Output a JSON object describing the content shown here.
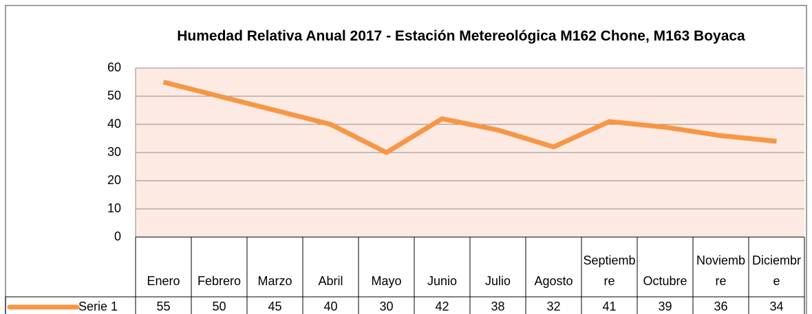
{
  "chart_data": {
    "type": "line",
    "title": "Humedad Relativa Anual 2017  - Estación Metereológica M162 Chone, M163 Boyaca",
    "categories": [
      "Enero",
      "Febrero",
      "Marzo",
      "Abril",
      "Mayo",
      "Junio",
      "Julio",
      "Agosto",
      "Septiembre",
      "Octubre",
      "Noviembre",
      "Diciembre"
    ],
    "series": [
      {
        "name": "Serie 1",
        "color": "#f79646",
        "values": [
          55,
          50,
          45,
          40,
          30,
          42,
          38,
          32,
          41,
          39,
          36,
          34
        ]
      }
    ],
    "ylim": [
      0,
      60
    ],
    "yticks": [
      0,
      10,
      20,
      30,
      40,
      50,
      60
    ],
    "grid": true,
    "data_table": true
  }
}
